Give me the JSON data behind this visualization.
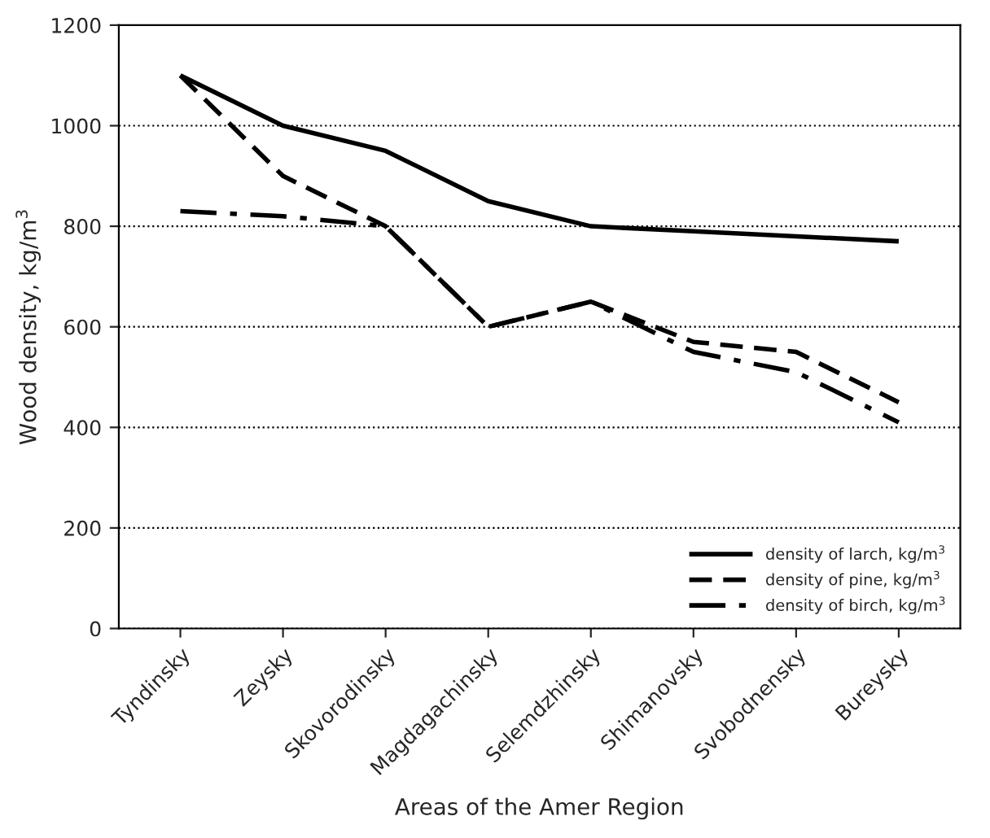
{
  "chart_data": {
    "type": "line",
    "xlabel": "Areas of the Amer Region",
    "ylabel": "Wood density, kg/m$^{3}$",
    "categories": [
      "Tyndinsky",
      "Zeysky",
      "Skovorodinsky",
      "Magdagachinsky",
      "Selemdzhinsky",
      "Shimanovsky",
      "Svobodnensky",
      "Bureysky"
    ],
    "series": [
      {
        "name": "density of larch, kg/m$^{3}$",
        "color": "#000000",
        "line_style": "solid",
        "values": [
          1100,
          1000,
          950,
          850,
          800,
          790,
          780,
          770
        ]
      },
      {
        "name": "density of pine, kg/m$^{3}$",
        "color": "#000000",
        "line_style": "dashed",
        "values": [
          1100,
          900,
          800,
          600,
          650,
          570,
          550,
          450
        ]
      },
      {
        "name": "density of birch, kg/m$^{3}$",
        "color": "#000000",
        "line_style": "dashdot",
        "values": [
          830,
          820,
          800,
          600,
          650,
          550,
          510,
          410
        ]
      }
    ],
    "ylim": [
      0,
      1200
    ],
    "yticks": [
      0,
      200,
      400,
      600,
      800,
      1000,
      1200
    ],
    "grid": "y",
    "legend": "bottom right",
    "marker": "none"
  }
}
